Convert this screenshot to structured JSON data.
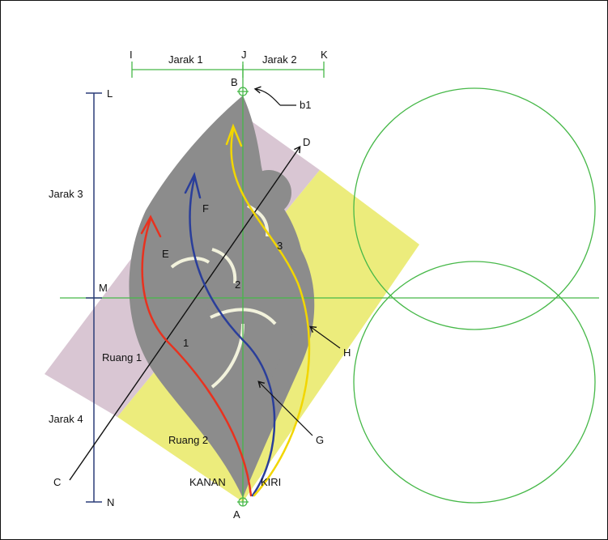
{
  "labels": {
    "I": "I",
    "J": "J",
    "K": "K",
    "jarak1": "Jarak 1",
    "jarak2": "Jarak 2",
    "jarak3": "Jarak 3",
    "jarak4": "Jarak 4",
    "L": "L",
    "M": "M",
    "N": "N",
    "B": "B",
    "b1": "b1",
    "D": "D",
    "C": "C",
    "A": "A",
    "E": "E",
    "F": "F",
    "G": "G",
    "H": "H",
    "n1": "1",
    "n2": "2",
    "n3": "3",
    "ruang1": "Ruang 1",
    "ruang2": "Ruang 2",
    "kanan": "KANAN",
    "kiri": "KIRI"
  },
  "colors": {
    "pink_region": "#d9c6d3",
    "yellow_region": "#ecec7c",
    "ornament": "#8c8c8c",
    "green_guides": "#46b848",
    "navy_guides": "#2c3d78",
    "red_curve": "#e8321f",
    "blue_curve": "#2a3e9a",
    "yellow_curve": "#f2d600",
    "black_axis": "#111111"
  }
}
